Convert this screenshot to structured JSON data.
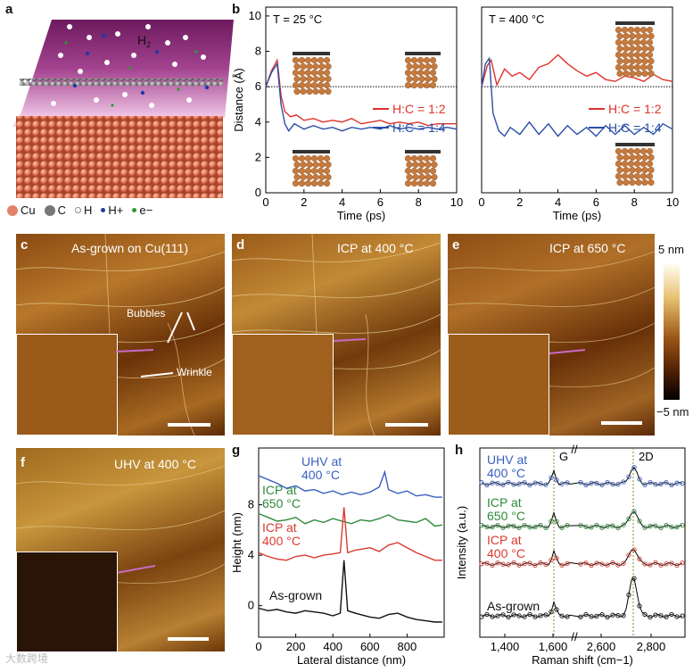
{
  "panels": {
    "a": {
      "letter": "a",
      "h2_label": "H",
      "h2_sub": "2",
      "legend": [
        {
          "symbol": "sphere",
          "color": "#e4836a",
          "label": "Cu"
        },
        {
          "symbol": "sphere",
          "color": "#777777",
          "label": "C"
        },
        {
          "symbol": "dot",
          "color": "#ffffff",
          "label": "H"
        },
        {
          "symbol": "dot",
          "color": "#1f3aa8",
          "label": "H+"
        },
        {
          "symbol": "dot",
          "color": "#2f9a2f",
          "label": "e−"
        }
      ]
    },
    "b": {
      "letter": "b"
    },
    "c": {
      "letter": "c",
      "label": "As-grown on Cu(111)",
      "bubbles": "Bubbles",
      "wrinkle": "Wrinkle"
    },
    "d": {
      "letter": "d",
      "label": "ICP at 400 °C"
    },
    "e": {
      "letter": "e",
      "label": "ICP at 650 °C"
    },
    "f": {
      "letter": "f",
      "label": "UHV at 400 °C"
    },
    "g": {
      "letter": "g"
    },
    "h": {
      "letter": "h"
    }
  },
  "colorbar": {
    "top": "5 nm",
    "bottom": "−5 nm"
  },
  "watermark": "大数跨境",
  "chart_data": [
    {
      "id": "b-left",
      "type": "line",
      "title": "T = 25 °C",
      "xlabel": "Time (ps)",
      "ylabel": "Distance (Å)",
      "xlim": [
        0,
        10
      ],
      "ylim": [
        0,
        10.5
      ],
      "xticks": [
        0,
        2,
        4,
        6,
        8,
        10
      ],
      "yticks": [
        0,
        2,
        4,
        6,
        8,
        10
      ],
      "reference_line": 6,
      "legend_position": "center-right",
      "series": [
        {
          "name": "H:C = 1:2",
          "color": "#e0312b",
          "x": [
            0,
            0.3,
            0.6,
            0.8,
            1.0,
            1.3,
            1.6,
            2.0,
            2.5,
            3.0,
            3.5,
            4.0,
            4.5,
            5.0,
            5.5,
            6.0,
            6.5,
            7.0,
            7.5,
            8.0,
            8.5,
            9.0,
            9.5,
            10
          ],
          "y": [
            6.0,
            6.9,
            7.5,
            5.5,
            4.6,
            4.3,
            4.4,
            4.1,
            4.2,
            4.0,
            4.1,
            4.0,
            4.2,
            3.9,
            4.0,
            4.1,
            3.9,
            4.0,
            3.9,
            4.0,
            3.8,
            3.9,
            3.9,
            3.9
          ]
        },
        {
          "name": "H:C = 1:4",
          "color": "#2a4fa8",
          "x": [
            0,
            0.3,
            0.6,
            0.8,
            1.0,
            1.2,
            1.5,
            2.0,
            2.5,
            3.0,
            3.5,
            4.0,
            4.5,
            5.0,
            5.5,
            6.0,
            6.5,
            7.0,
            7.5,
            8.0,
            8.5,
            9.0,
            9.5,
            10
          ],
          "y": [
            6.0,
            6.8,
            7.3,
            5.0,
            3.9,
            3.5,
            3.9,
            3.6,
            3.8,
            3.6,
            3.7,
            3.5,
            3.7,
            3.6,
            3.7,
            3.6,
            3.8,
            3.6,
            3.7,
            3.6,
            3.7,
            3.6,
            3.7,
            3.6
          ]
        }
      ]
    },
    {
      "id": "b-right",
      "type": "line",
      "title": "T = 400 °C",
      "xlabel": "Time (ps)",
      "xlim": [
        0,
        10
      ],
      "ylim": [
        0,
        10.5
      ],
      "xticks": [
        0,
        2,
        4,
        6,
        8,
        10
      ],
      "reference_line": 6,
      "legend_position": "center-right",
      "series": [
        {
          "name": "H:C = 1:2",
          "color": "#e0312b",
          "x": [
            0,
            0.3,
            0.5,
            0.8,
            1.2,
            1.6,
            2.0,
            2.5,
            3.0,
            3.5,
            4.0,
            4.5,
            5.0,
            5.5,
            6.0,
            6.5,
            7.0,
            7.5,
            8.0,
            8.5,
            9.0,
            9.5,
            10
          ],
          "y": [
            6.0,
            7.2,
            7.5,
            6.1,
            7.0,
            6.6,
            6.8,
            6.4,
            7.1,
            7.3,
            7.8,
            7.3,
            6.9,
            6.6,
            6.8,
            6.4,
            6.3,
            6.6,
            6.5,
            6.3,
            6.7,
            6.4,
            6.3
          ]
        },
        {
          "name": "H:C = 1:4",
          "color": "#2a4fa8",
          "x": [
            0,
            0.2,
            0.4,
            0.6,
            0.9,
            1.2,
            1.5,
            2.0,
            2.5,
            3.0,
            3.5,
            4.0,
            4.5,
            5.0,
            5.5,
            6.0,
            6.5,
            7.0,
            7.5,
            8.0,
            8.5,
            9.0,
            9.5,
            10
          ],
          "y": [
            6.0,
            7.3,
            7.6,
            4.5,
            3.5,
            3.2,
            3.7,
            3.3,
            4.0,
            3.3,
            3.9,
            3.2,
            3.8,
            3.3,
            3.7,
            3.2,
            3.8,
            3.3,
            3.8,
            3.3,
            3.7,
            3.3,
            3.9,
            3.6
          ]
        }
      ]
    },
    {
      "id": "g",
      "type": "line",
      "xlabel": "Lateral distance (nm)",
      "ylabel": "Height (nm)",
      "xlim": [
        0,
        1000
      ],
      "ylim": [
        -2.5,
        12.5
      ],
      "xticks": [
        0,
        200,
        400,
        600,
        800
      ],
      "yticks": [
        0,
        4,
        8
      ],
      "series": [
        {
          "name": "UHV at 400 °C",
          "color": "#3a5fc0",
          "x": [
            0,
            50,
            100,
            150,
            200,
            250,
            300,
            350,
            400,
            450,
            500,
            550,
            600,
            650,
            680,
            700,
            750,
            800,
            850,
            900,
            950,
            990
          ],
          "y": [
            10.3,
            10.0,
            9.7,
            9.3,
            9.5,
            9.1,
            9.2,
            8.9,
            9.1,
            8.8,
            9.0,
            8.8,
            9.0,
            9.4,
            10.6,
            9.2,
            8.9,
            9.1,
            8.7,
            8.8,
            8.6,
            8.6
          ]
        },
        {
          "name": "ICP at 650 °C",
          "color": "#2e8b3a",
          "x": [
            0,
            50,
            100,
            150,
            200,
            250,
            300,
            350,
            400,
            450,
            500,
            550,
            600,
            650,
            700,
            750,
            800,
            850,
            900,
            950,
            990
          ],
          "y": [
            7.3,
            7.0,
            6.7,
            6.8,
            7.0,
            6.5,
            6.8,
            6.6,
            6.9,
            6.7,
            6.5,
            6.8,
            6.7,
            6.9,
            7.2,
            6.8,
            6.7,
            6.6,
            6.9,
            6.3,
            6.4
          ]
        },
        {
          "name": "ICP at 400 °C",
          "color": "#d93a30",
          "x": [
            0,
            50,
            100,
            150,
            200,
            250,
            300,
            350,
            400,
            440,
            460,
            480,
            520,
            600,
            650,
            700,
            750,
            800,
            850,
            900,
            950,
            990
          ],
          "y": [
            4.2,
            3.9,
            3.7,
            3.6,
            3.9,
            4.0,
            3.8,
            4.0,
            4.1,
            4.2,
            7.8,
            4.2,
            4.4,
            4.6,
            4.3,
            4.8,
            5.0,
            4.6,
            4.2,
            3.9,
            3.6,
            3.6
          ]
        },
        {
          "name": "As-grown",
          "color": "#111111",
          "x": [
            0,
            50,
            100,
            150,
            200,
            250,
            300,
            350,
            400,
            440,
            460,
            480,
            520,
            600,
            650,
            700,
            750,
            800,
            850,
            900,
            950,
            990
          ],
          "y": [
            -0.2,
            -0.4,
            -0.3,
            -0.5,
            -0.6,
            -0.4,
            -0.5,
            -0.6,
            -0.8,
            -0.6,
            3.6,
            -0.4,
            -0.6,
            -0.9,
            -1.0,
            -0.7,
            -0.6,
            -0.9,
            -1.1,
            -1.2,
            -1.3,
            -1.3
          ]
        }
      ]
    },
    {
      "id": "h",
      "type": "scatter",
      "xlabel": "Raman shift (cm−1)",
      "ylabel": "Intensity (a.u.)",
      "xticks": [
        "1,400",
        "1,600",
        "2,600",
        "2,800"
      ],
      "peaks": [
        {
          "label": "G",
          "position": 1600
        },
        {
          "label": "2D",
          "position": 2720
        }
      ],
      "series": [
        {
          "name": "UHV at 400 °C",
          "color": "#3a5fc0"
        },
        {
          "name": "ICP at 650 °C",
          "color": "#2e8b3a"
        },
        {
          "name": "ICP at 400 °C",
          "color": "#d93a30"
        },
        {
          "name": "As-grown",
          "color": "#111111"
        }
      ]
    }
  ]
}
